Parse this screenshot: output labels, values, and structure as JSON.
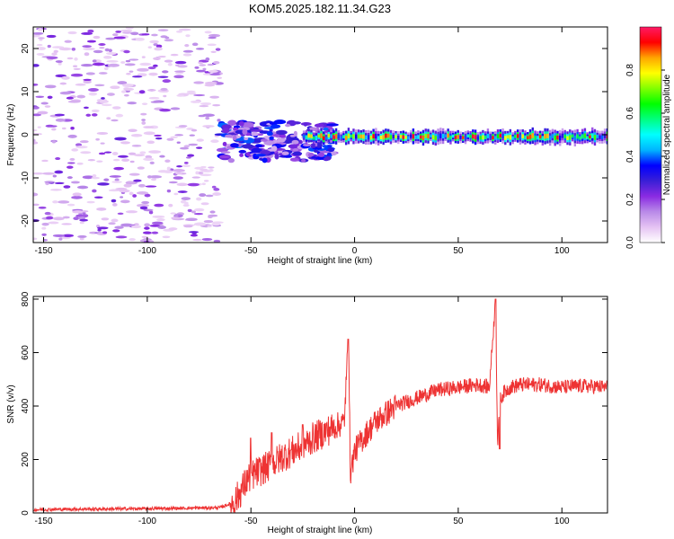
{
  "chart_data": [
    {
      "type": "heatmap",
      "title": "KOM5.2025.182.11.34.G23",
      "xlabel": "Height of straight line (km)",
      "ylabel": "Frequency (Hz)",
      "xlim": [
        -155,
        122
      ],
      "ylim": [
        -25,
        25
      ],
      "xticks": [
        -150,
        -100,
        -50,
        0,
        50,
        100
      ],
      "yticks": [
        -20,
        -10,
        0,
        10,
        20
      ],
      "grid": false,
      "colorbar": {
        "label": "Normalized spectral amplitude",
        "range": [
          0.0,
          1.0
        ],
        "ticks": [
          0.0,
          0.2,
          0.4,
          0.6,
          0.8
        ],
        "colors": [
          "#ffffff",
          "#e5c3f3",
          "#b98ae8",
          "#8a2be2",
          "#3a1fd6",
          "#0000ff",
          "#00b4ff",
          "#00ffff",
          "#00ff80",
          "#00ff00",
          "#80ff00",
          "#ffff00",
          "#ffa500",
          "#ff0000",
          "#ff1a66"
        ]
      },
      "features": [
        {
          "name": "noise",
          "x_range": [
            -155,
            -65
          ],
          "freq_range": [
            -25,
            25
          ],
          "amplitude": [
            0.05,
            0.25
          ]
        },
        {
          "name": "turbulent-onset",
          "x_range": [
            -65,
            -10
          ],
          "freq_range": [
            -6,
            3
          ],
          "amplitude": [
            0.1,
            0.4
          ]
        },
        {
          "name": "steady-line",
          "x_range": [
            -25,
            122
          ],
          "freq_center": -0.5,
          "freq_halfwidth": 1.5,
          "amplitude": [
            0.3,
            0.98
          ]
        }
      ]
    },
    {
      "type": "line",
      "title": "",
      "xlabel": "Height of straight line (km)",
      "ylabel": "SNR (v/v)",
      "xlim": [
        -155,
        122
      ],
      "ylim": [
        0,
        810
      ],
      "xticks": [
        -150,
        -100,
        -50,
        0,
        50,
        100
      ],
      "yticks": [
        0,
        200,
        400,
        600,
        800
      ],
      "grid": false,
      "color": "#ee3333",
      "x": [
        -155,
        -140,
        -120,
        -100,
        -80,
        -65,
        -58,
        -55,
        -52,
        -50,
        -45,
        -40,
        -35,
        -30,
        -25,
        -20,
        -15,
        -10,
        -5,
        -3,
        -2,
        0,
        5,
        10,
        20,
        30,
        40,
        50,
        60,
        65,
        68,
        69,
        70,
        72,
        75,
        80,
        90,
        100,
        110,
        122
      ],
      "y": [
        12,
        14,
        15,
        16,
        18,
        20,
        40,
        80,
        120,
        140,
        160,
        180,
        210,
        230,
        250,
        280,
        300,
        320,
        340,
        650,
        150,
        230,
        290,
        340,
        400,
        430,
        460,
        470,
        480,
        470,
        800,
        240,
        420,
        450,
        470,
        480,
        480,
        470,
        475,
        470
      ],
      "spikes": [
        {
          "x": -50,
          "y": 280
        },
        {
          "x": -40,
          "y": 300
        },
        {
          "x": -25,
          "y": 330
        },
        {
          "x": -3,
          "y": 650
        },
        {
          "x": 68,
          "y": 800
        },
        {
          "x": 70,
          "y": 240
        }
      ],
      "noise_amplitude": [
        {
          "x_from": -155,
          "x_to": -60,
          "amp": 6
        },
        {
          "x_from": -60,
          "x_to": -10,
          "amp": 60
        },
        {
          "x_from": -10,
          "x_to": 20,
          "amp": 50
        },
        {
          "x_from": 20,
          "x_to": 122,
          "amp": 28
        }
      ]
    }
  ]
}
